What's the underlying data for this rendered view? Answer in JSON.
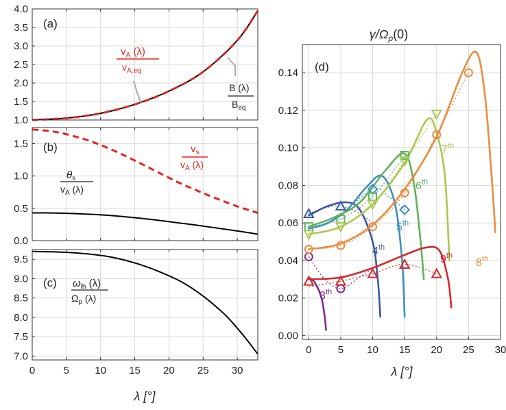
{
  "chart_data": [
    {
      "type": "line",
      "panel": "(a)",
      "xlim": [
        0,
        33
      ],
      "ylim": [
        1.0,
        4.0
      ],
      "xticks": [],
      "yticks": [
        1.0,
        1.5,
        2.0,
        2.5,
        3.0,
        3.5,
        4.0
      ],
      "ytick_labels": [
        "1.0",
        "1.5",
        "2.0",
        "2.5",
        "3.0",
        "3.5",
        "4.0"
      ],
      "grid": true,
      "series": [
        {
          "name": "B(λ)/B_eq",
          "color": "#000000",
          "style": "solid",
          "x": [
            0,
            5,
            10,
            15,
            20,
            25,
            30,
            33
          ],
          "y": [
            1.0,
            1.05,
            1.18,
            1.42,
            1.78,
            2.3,
            3.15,
            3.95
          ]
        },
        {
          "name": "v_A(λ)/v_A,eq",
          "color": "#e8231e",
          "style": "dashed",
          "x": [
            0,
            5,
            10,
            15,
            20,
            25,
            30,
            33
          ],
          "y": [
            1.0,
            1.05,
            1.18,
            1.42,
            1.78,
            2.3,
            3.15,
            3.95
          ]
        }
      ],
      "annotations": {
        "va_num": "v",
        "va_num_sub": "A",
        "va_num_arg": " (λ)",
        "va_den": "v",
        "va_den_sub": "A,eq",
        "b_num": "B (λ)",
        "b_den": "B",
        "b_den_sub": "eq"
      }
    },
    {
      "type": "line",
      "panel": "(b)",
      "xlim": [
        0,
        33
      ],
      "ylim": [
        0.0,
        1.75
      ],
      "yticks": [
        0.0,
        0.5,
        1.0,
        1.5
      ],
      "ytick_labels": [
        "0.0",
        "0.5",
        "1.0",
        "1.5"
      ],
      "grid": true,
      "series": [
        {
          "name": "v_s/v_A(λ)",
          "color": "#e8231e",
          "style": "dashed",
          "x": [
            0,
            3,
            6,
            9,
            12,
            15,
            18,
            21,
            24,
            27,
            30,
            33
          ],
          "y": [
            1.72,
            1.69,
            1.62,
            1.52,
            1.39,
            1.24,
            1.08,
            0.92,
            0.78,
            0.65,
            0.53,
            0.43
          ]
        },
        {
          "name": "θ_s/v_A(λ)",
          "color": "#000000",
          "style": "solid",
          "x": [
            0,
            3,
            6,
            9,
            12,
            15,
            18,
            21,
            24,
            27,
            30,
            33
          ],
          "y": [
            0.43,
            0.428,
            0.42,
            0.405,
            0.385,
            0.355,
            0.32,
            0.28,
            0.24,
            0.195,
            0.15,
            0.1
          ]
        }
      ],
      "annotations": {
        "vs_num": "v",
        "vs_num_sub": "s",
        "vs_den": "v",
        "vs_den_sub": "A",
        "vs_den_arg": " (λ)",
        "th_num": "θ",
        "th_num_sub": "s",
        "th_den": "v",
        "th_den_sub": "A",
        "th_den_arg": " (λ)"
      }
    },
    {
      "type": "line",
      "panel": "(c)",
      "xlim": [
        0,
        33
      ],
      "ylim": [
        6.9,
        9.75
      ],
      "xticks": [
        0,
        5,
        10,
        15,
        20,
        25,
        30
      ],
      "xtick_labels": [
        "0",
        "5",
        "10",
        "15",
        "20",
        "25",
        "30"
      ],
      "yticks": [
        7.0,
        7.5,
        8.0,
        8.5,
        9.0,
        9.5
      ],
      "ytick_labels": [
        "7.0",
        "7.5",
        "8.0",
        "8.5",
        "9.0",
        "9.5"
      ],
      "xlabel": "λ [°]",
      "grid": true,
      "series": [
        {
          "name": "ω_lh(λ)/Ω_p(λ)",
          "color": "#000000",
          "style": "solid",
          "x": [
            0,
            5,
            10,
            13,
            16,
            19,
            22,
            25,
            28,
            30,
            31.5,
            33
          ],
          "y": [
            9.7,
            9.68,
            9.6,
            9.5,
            9.35,
            9.15,
            8.9,
            8.55,
            8.1,
            7.72,
            7.4,
            7.05
          ]
        }
      ],
      "annotations": {
        "w_num": "ω",
        "w_num_sub": "lh",
        "w_num_arg": " (λ)",
        "w_den": "Ω",
        "w_den_sub": "p",
        "w_den_arg": " (λ)"
      }
    },
    {
      "type": "line",
      "panel": "(d)",
      "title_main": "γ/Ω",
      "title_sub": "p",
      "title_tail": "(0)",
      "xlim": [
        -1,
        30
      ],
      "ylim": [
        -0.002,
        0.155
      ],
      "xticks": [
        0,
        5,
        10,
        15,
        20,
        25,
        30
      ],
      "xtick_labels": [
        "0",
        "5",
        "10",
        "15",
        "20",
        "25",
        "30"
      ],
      "yticks": [
        0.0,
        0.02,
        0.04,
        0.06,
        0.08,
        0.1,
        0.12,
        0.14
      ],
      "ytick_labels": [
        "0.00",
        "0.02",
        "0.04",
        "0.06",
        "0.08",
        "0.10",
        "0.12",
        "0.14"
      ],
      "xlabel": "λ [°]",
      "grid": true,
      "series": [
        {
          "name": "3th",
          "label": "3",
          "color": "#7b2d8e",
          "marker": "circle",
          "x": [
            0,
            1,
            2,
            2.5,
            2.7
          ],
          "y": [
            0.031,
            0.028,
            0.02,
            0.01,
            0.003
          ],
          "markers_x": [
            0,
            5
          ],
          "markers_y": [
            0.042,
            0.025
          ],
          "ref_x": [
            0,
            2.5,
            5,
            7.5,
            10
          ],
          "ref_y": [
            0.042,
            0.03,
            0.025,
            0.03,
            0.036
          ]
        },
        {
          "name": "4th",
          "label": "4",
          "color": "#3c56a6",
          "marker": "triangle",
          "x": [
            0,
            3,
            6,
            8,
            10,
            10.8,
            11.2
          ],
          "y": [
            0.064,
            0.069,
            0.071,
            0.067,
            0.05,
            0.03,
            0.01
          ],
          "markers_x": [
            0,
            5
          ],
          "markers_y": [
            0.065,
            0.069
          ],
          "ref_x": [
            0,
            2.5,
            5,
            7.5,
            10
          ],
          "ref_y": [
            0.065,
            0.068,
            0.069,
            0.066,
            0.06
          ]
        },
        {
          "name": "5th",
          "label": "5",
          "color": "#3d8ec1",
          "marker": "diamond",
          "x": [
            0,
            3,
            6,
            9,
            11.5,
            13.5,
            14.6,
            15
          ],
          "y": [
            0.057,
            0.06,
            0.067,
            0.079,
            0.085,
            0.07,
            0.04,
            0.01
          ],
          "markers_x": [
            10,
            15
          ],
          "markers_y": [
            0.078,
            0.067
          ],
          "ref_x": [
            0,
            5,
            10,
            12.5,
            15
          ],
          "ref_y": [
            0.058,
            0.065,
            0.078,
            0.074,
            0.067
          ]
        },
        {
          "name": "6th",
          "label": "6",
          "color": "#5db35c",
          "marker": "square",
          "x": [
            0,
            4,
            8,
            12,
            15,
            16.5,
            17.5,
            18
          ],
          "y": [
            0.058,
            0.063,
            0.071,
            0.088,
            0.097,
            0.08,
            0.05,
            0.03
          ],
          "markers_x": [
            0,
            5,
            10,
            15
          ],
          "markers_y": [
            0.058,
            0.062,
            0.074,
            0.096
          ],
          "ref_x": [
            0,
            5,
            10,
            15
          ],
          "ref_y": [
            0.058,
            0.062,
            0.074,
            0.096
          ]
        },
        {
          "name": "7th",
          "label": "7",
          "color": "#a9c94b",
          "marker": "triangle-down",
          "x": [
            0,
            5,
            10,
            15,
            18.5,
            20,
            21.3,
            22
          ],
          "y": [
            0.054,
            0.058,
            0.07,
            0.092,
            0.115,
            0.108,
            0.085,
            0.04
          ],
          "markers_x": [
            0,
            5,
            10,
            15,
            20
          ],
          "markers_y": [
            0.054,
            0.058,
            0.07,
            0.093,
            0.118
          ],
          "ref_x": [
            0,
            5,
            10,
            15,
            20
          ],
          "ref_y": [
            0.054,
            0.058,
            0.07,
            0.093,
            0.118
          ]
        },
        {
          "name": "8th",
          "label": "8",
          "color": "#ec8b3f",
          "marker": "circle",
          "x": [
            0,
            5,
            10,
            15,
            20,
            24,
            26.2,
            27.5,
            28.5,
            29.2
          ],
          "y": [
            0.046,
            0.049,
            0.059,
            0.078,
            0.106,
            0.14,
            0.151,
            0.13,
            0.09,
            0.055
          ],
          "markers_x": [
            0,
            5,
            10,
            15,
            20,
            25
          ],
          "markers_y": [
            0.046,
            0.048,
            0.058,
            0.076,
            0.107,
            0.14
          ],
          "ref_x": [
            0,
            5,
            10,
            15,
            20,
            25
          ],
          "ref_y": [
            0.046,
            0.048,
            0.058,
            0.076,
            0.107,
            0.14
          ]
        },
        {
          "name": "9th",
          "label": "9",
          "color": "#d6272b",
          "marker": "triangle",
          "x": [
            0,
            5,
            10,
            15,
            18.5,
            20.5,
            21.8,
            22.3
          ],
          "y": [
            0.03,
            0.031,
            0.036,
            0.043,
            0.047,
            0.045,
            0.03,
            0.015
          ],
          "markers_x": [
            0,
            5,
            10,
            15,
            20
          ],
          "markers_y": [
            0.029,
            0.029,
            0.033,
            0.038,
            0.033
          ],
          "ref_x": [
            0,
            5,
            10,
            15,
            20
          ],
          "ref_y": [
            0.026,
            0.029,
            0.033,
            0.038,
            0.033
          ]
        }
      ],
      "labels": {
        "l3": "3",
        "l4": "4",
        "l5": "5",
        "l6": "6",
        "l7": "7",
        "l8": "8",
        "l9": "9",
        "suffix": "th"
      }
    }
  ],
  "panel_tags": {
    "a": "(a)",
    "b": "(b)",
    "c": "(c)",
    "d": "(d)"
  }
}
